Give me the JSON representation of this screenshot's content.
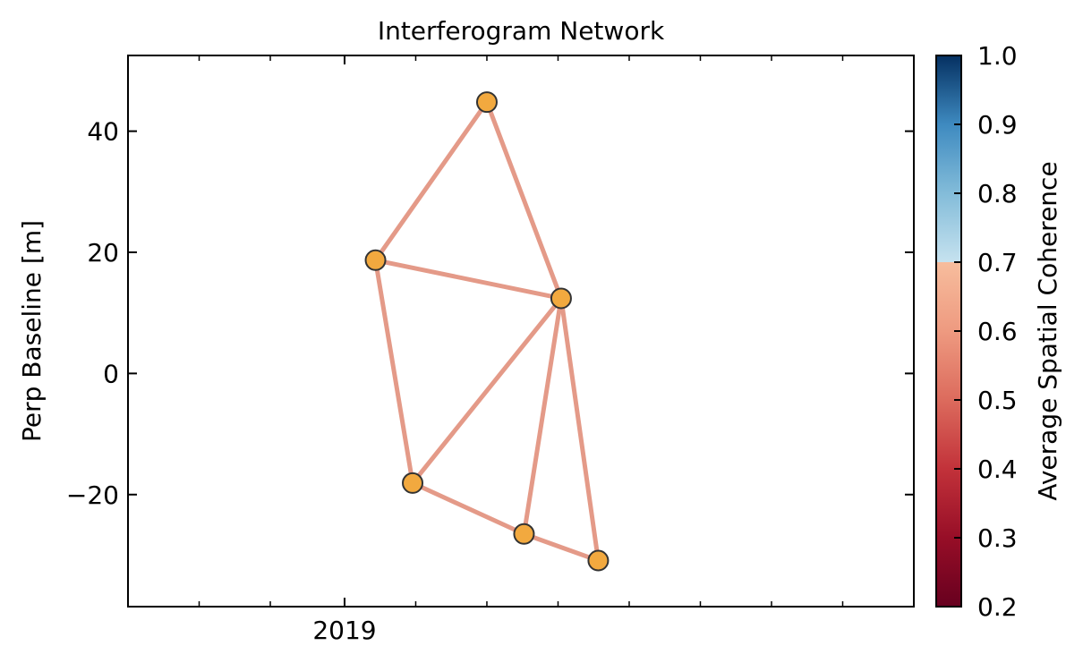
{
  "chart_data": {
    "type": "scatter",
    "title": "Interferogram Network",
    "xlabel": "",
    "ylabel": "Perp Baseline [m]",
    "xlim": [
      "2018-10-23",
      "2019-07-04"
    ],
    "ylim": [
      -38.5,
      52.5
    ],
    "xticks": [
      {
        "x": "2019-01-01",
        "label": "2019"
      }
    ],
    "x_minor_ticks": [
      "2018-11-15",
      "2018-12-08",
      "2019-01-24",
      "2019-02-16",
      "2019-03-11",
      "2019-04-03",
      "2019-04-26",
      "2019-05-19",
      "2019-06-11"
    ],
    "yticks": [
      {
        "y": 40,
        "label": "40"
      },
      {
        "y": 20,
        "label": "20"
      },
      {
        "y": 0,
        "label": "0"
      },
      {
        "y": -20,
        "label": "−20"
      }
    ],
    "acquisitions": [
      {
        "date": "2019-01-11",
        "bperp": 18.7
      },
      {
        "date": "2019-01-23",
        "bperp": -18.1
      },
      {
        "date": "2019-02-16",
        "bperp": 44.8
      },
      {
        "date": "2019-02-28",
        "bperp": -26.5
      },
      {
        "date": "2019-03-12",
        "bperp": 12.4
      },
      {
        "date": "2019-03-24",
        "bperp": -30.9
      }
    ],
    "pairs": [
      {
        "from": 0,
        "to": 2,
        "coherence": 0.64
      },
      {
        "from": 0,
        "to": 4,
        "coherence": 0.64
      },
      {
        "from": 0,
        "to": 1,
        "coherence": 0.64
      },
      {
        "from": 2,
        "to": 4,
        "coherence": 0.64
      },
      {
        "from": 4,
        "to": 1,
        "coherence": 0.64
      },
      {
        "from": 4,
        "to": 3,
        "coherence": 0.64
      },
      {
        "from": 4,
        "to": 5,
        "coherence": 0.64
      },
      {
        "from": 1,
        "to": 3,
        "coherence": 0.64
      },
      {
        "from": 3,
        "to": 5,
        "coherence": 0.64
      }
    ],
    "colorbar": {
      "label": "Average Spatial Coherence",
      "range": [
        0.2,
        1.0
      ],
      "ticks": [
        "0.2",
        "0.3",
        "0.4",
        "0.5",
        "0.6",
        "0.7",
        "0.8",
        "0.9",
        "1.0"
      ],
      "colormap": "RdBu",
      "colormap_stops": [
        {
          "v": 0.2,
          "color": "#67001f"
        },
        {
          "v": 0.3,
          "color": "#970e27"
        },
        {
          "v": 0.4,
          "color": "#c2323a"
        },
        {
          "v": 0.5,
          "color": "#dc6b5d"
        },
        {
          "v": 0.6,
          "color": "#ee9a80"
        },
        {
          "v": 0.7,
          "color": "#f7bd9d"
        },
        {
          "v": 0.7,
          "color": "#c6e2ef"
        },
        {
          "v": 0.8,
          "color": "#83bcd9"
        },
        {
          "v": 0.9,
          "color": "#3e8ac0"
        },
        {
          "v": 1.0,
          "color": "#053061"
        }
      ]
    },
    "colors": {
      "marker_fill": "#f2a93f",
      "marker_edge": "#333333",
      "edge_line": "#e49a88",
      "axes": "#000000"
    },
    "grid": false,
    "legend": "none"
  }
}
